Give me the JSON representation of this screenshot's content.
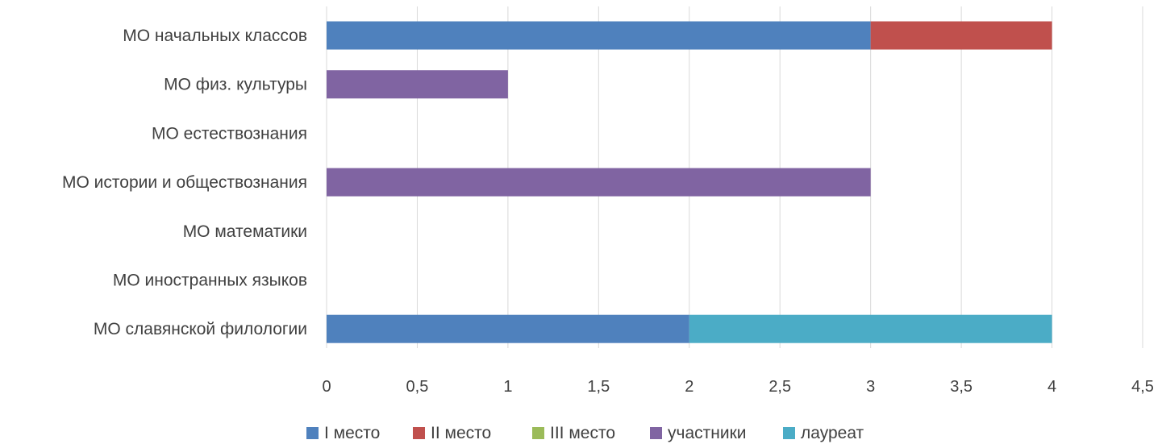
{
  "chart_data": {
    "type": "bar",
    "orientation": "horizontal",
    "stacked": true,
    "categories": [
      "МО начальных классов",
      "МО физ. культуры",
      "МО естествознания",
      "МО истории и  обществознания",
      "МО математики",
      "МО иностранных языков",
      "МО славянской филологии"
    ],
    "series": [
      {
        "name": "I место",
        "color": "#4f81bd",
        "values": [
          3,
          0,
          0,
          0,
          0,
          0,
          2
        ]
      },
      {
        "name": "II место",
        "color": "#c0504d",
        "values": [
          1,
          0,
          0,
          0,
          0,
          0,
          0
        ]
      },
      {
        "name": "III место",
        "color": "#9bbb59",
        "values": [
          0,
          0,
          0,
          0,
          0,
          0,
          0
        ]
      },
      {
        "name": "участники",
        "color": "#8064a2",
        "values": [
          0,
          1,
          0,
          3,
          0,
          0,
          0
        ]
      },
      {
        "name": "лауреат",
        "color": "#4bacc6",
        "values": [
          0,
          0,
          0,
          0,
          0,
          0,
          2
        ]
      }
    ],
    "x_ticks": [
      "0",
      "0,5",
      "1",
      "1,5",
      "2",
      "2,5",
      "3",
      "3,5",
      "4",
      "4,5"
    ],
    "xlim": [
      0,
      4.5
    ],
    "grid": true,
    "legend": "bottom"
  }
}
